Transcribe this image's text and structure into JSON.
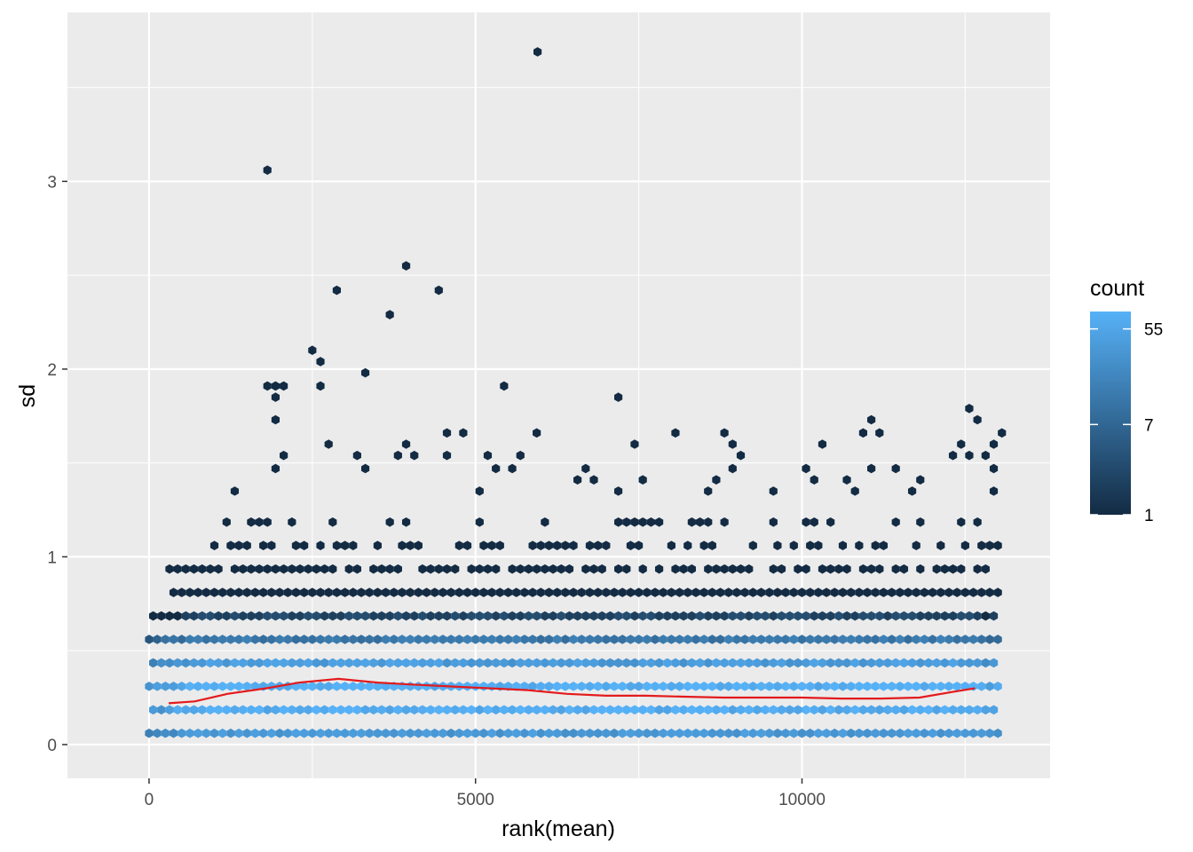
{
  "chart_data": {
    "type": "hexbin",
    "xlabel": "rank(mean)",
    "ylabel": "sd",
    "xlim": [
      -1250,
      13800
    ],
    "ylim": [
      -0.18,
      3.9
    ],
    "x_ticks": [
      0,
      5000,
      10000
    ],
    "x_tick_labels": [
      "0",
      "5000",
      "10000"
    ],
    "y_ticks": [
      0,
      1,
      2,
      3
    ],
    "y_tick_labels": [
      "0",
      "1",
      "2",
      "3"
    ],
    "grid": true,
    "legend": {
      "title": "count",
      "placement": "right",
      "breaks": [
        55,
        7,
        1
      ],
      "break_labels": [
        "55",
        "7",
        "1"
      ],
      "min": 1,
      "max": 80,
      "scale": "log",
      "color_low": "#132B43",
      "color_high": "#56B1F7"
    },
    "hex_grid": {
      "dx": 125,
      "dy": 0.0625,
      "x_range": [
        0,
        13000
      ],
      "y_range": [
        0,
        1.3
      ]
    },
    "outlier_hexes": [
      [
        5950,
        3.69,
        1
      ],
      [
        1812,
        3.06,
        1
      ],
      [
        3937,
        2.55,
        1
      ],
      [
        2875,
        2.42,
        1
      ],
      [
        4437,
        2.42,
        1
      ],
      [
        3687,
        2.29,
        1
      ],
      [
        2500,
        2.1,
        1
      ],
      [
        2625,
        2.04,
        1
      ],
      [
        3312,
        1.98,
        1
      ],
      [
        1812,
        1.91,
        1
      ],
      [
        1937,
        1.91,
        1
      ],
      [
        2062,
        1.91,
        1
      ],
      [
        2625,
        1.91,
        1
      ],
      [
        5437,
        1.91,
        1
      ],
      [
        1937,
        1.85,
        1
      ],
      [
        7187,
        1.85,
        1
      ],
      [
        12562,
        1.79,
        1
      ],
      [
        1937,
        1.73,
        1
      ],
      [
        11062,
        1.73,
        1
      ],
      [
        12687,
        1.73,
        1
      ],
      [
        4562,
        1.66,
        1
      ],
      [
        4812,
        1.66,
        1
      ],
      [
        5937,
        1.66,
        1
      ],
      [
        8062,
        1.66,
        1
      ],
      [
        8812,
        1.66,
        1
      ],
      [
        10937,
        1.66,
        1
      ],
      [
        11187,
        1.66,
        1
      ],
      [
        13062,
        1.66,
        1
      ],
      [
        2750,
        1.6,
        1
      ],
      [
        3937,
        1.6,
        1
      ],
      [
        7437,
        1.6,
        1
      ],
      [
        8937,
        1.6,
        1
      ],
      [
        10312,
        1.6,
        1
      ],
      [
        12437,
        1.6,
        1
      ],
      [
        12937,
        1.6,
        1
      ],
      [
        2062,
        1.54,
        1
      ],
      [
        3187,
        1.54,
        1
      ],
      [
        3812,
        1.54,
        1
      ],
      [
        4062,
        1.54,
        1
      ],
      [
        4562,
        1.54,
        1
      ],
      [
        5187,
        1.54,
        1
      ],
      [
        5687,
        1.54,
        1
      ],
      [
        9062,
        1.54,
        1
      ],
      [
        12312,
        1.54,
        1
      ],
      [
        12562,
        1.54,
        1
      ],
      [
        12812,
        1.54,
        1
      ],
      [
        1937,
        1.47,
        1
      ],
      [
        3312,
        1.47,
        1
      ],
      [
        5312,
        1.47,
        1
      ],
      [
        5562,
        1.47,
        1
      ],
      [
        6687,
        1.47,
        1
      ],
      [
        8937,
        1.47,
        1
      ],
      [
        10062,
        1.47,
        1
      ],
      [
        11062,
        1.47,
        1
      ],
      [
        11437,
        1.47,
        1
      ],
      [
        12937,
        1.47,
        1
      ],
      [
        1312,
        1.35,
        1
      ],
      [
        6562,
        1.41,
        1
      ],
      [
        6812,
        1.41,
        1
      ],
      [
        7562,
        1.41,
        1
      ],
      [
        8687,
        1.41,
        1
      ],
      [
        10187,
        1.41,
        1
      ],
      [
        10687,
        1.41,
        1
      ],
      [
        11812,
        1.41,
        1
      ],
      [
        5062,
        1.35,
        1
      ],
      [
        7187,
        1.35,
        1
      ],
      [
        8562,
        1.35,
        1
      ],
      [
        9562,
        1.35,
        1
      ],
      [
        10812,
        1.35,
        1
      ],
      [
        11687,
        1.35,
        1
      ],
      [
        12937,
        1.35,
        1
      ]
    ],
    "smooth_line": {
      "color": "#e41a1c",
      "x": [
        300,
        700,
        1200,
        1800,
        2300,
        2900,
        3500,
        4000,
        4600,
        5200,
        5800,
        6400,
        7000,
        7600,
        8200,
        8800,
        9400,
        10000,
        10600,
        11200,
        11800,
        12300,
        12650
      ],
      "y": [
        0.22,
        0.23,
        0.27,
        0.3,
        0.33,
        0.35,
        0.33,
        0.32,
        0.31,
        0.3,
        0.29,
        0.27,
        0.26,
        0.26,
        0.255,
        0.25,
        0.25,
        0.25,
        0.245,
        0.245,
        0.25,
        0.28,
        0.3
      ]
    }
  }
}
